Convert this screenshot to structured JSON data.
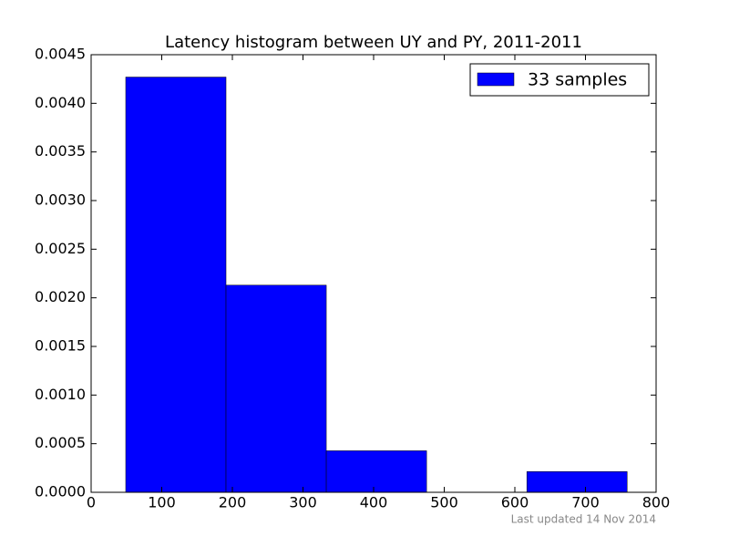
{
  "chart_data": {
    "type": "histogram",
    "title": "Latency histogram between UY and PY, 2011-2011",
    "bins": [
      49,
      191,
      333,
      475,
      617,
      759
    ],
    "series": [
      {
        "name": "33 samples",
        "color": "#0000ff",
        "values": [
          0.00427,
          0.00213,
          0.000427,
          0,
          0.000213
        ]
      }
    ],
    "xlim": [
      0,
      800
    ],
    "xticks": [
      0,
      100,
      200,
      300,
      400,
      500,
      600,
      700,
      800
    ],
    "ylim": [
      0,
      0.0045
    ],
    "yticks": [
      {
        "value": 0,
        "label": "0.0000"
      },
      {
        "value": 0.0005,
        "label": "0.0005"
      },
      {
        "value": 0.001,
        "label": "0.0010"
      },
      {
        "value": 0.0015,
        "label": "0.0015"
      },
      {
        "value": 0.002,
        "label": "0.0020"
      },
      {
        "value": 0.0025,
        "label": "0.0025"
      },
      {
        "value": 0.003,
        "label": "0.0030"
      },
      {
        "value": 0.0035,
        "label": "0.0035"
      },
      {
        "value": 0.004,
        "label": "0.0040"
      },
      {
        "value": 0.0045,
        "label": "0.0045"
      }
    ],
    "legend": "upper right",
    "note": "Last updated 14 Nov 2014"
  }
}
